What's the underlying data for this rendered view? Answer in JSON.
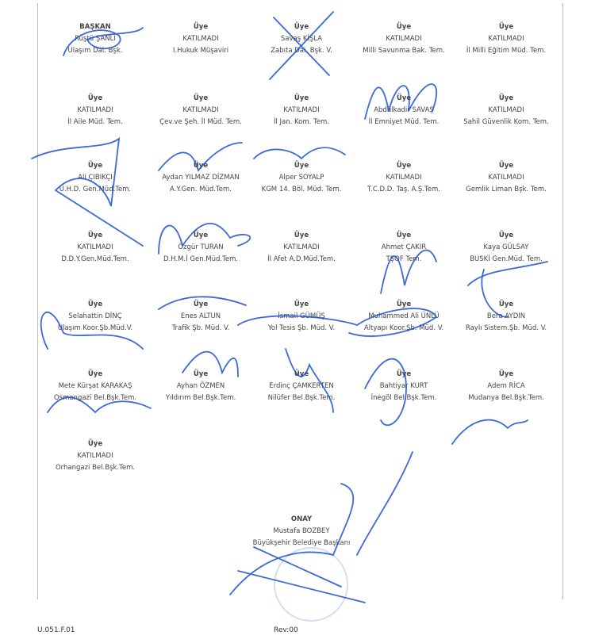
{
  "members": [
    {
      "role": "BAŞKAN",
      "name": "Rüştü ŞANLI",
      "title": "Ulaşım Dai. Bşk."
    },
    {
      "role": "Üye",
      "name": "KATILMADI",
      "title": "I.Hukuk Müşaviri"
    },
    {
      "role": "Üye",
      "name": "Savaş KİŞLA",
      "title": "Zabıta Dai. Bşk. V."
    },
    {
      "role": "Üye",
      "name": "KATILMADI",
      "title": "Milli Savunma Bak. Tem."
    },
    {
      "role": "Üye",
      "name": "KATILMADI",
      "title": "İl Milli Eğitim Müd. Tem."
    },
    {
      "role": "Üye",
      "name": "KATILMADI",
      "title": "İl Aile  Müd. Tem."
    },
    {
      "role": "Üye",
      "name": "KATILMADI",
      "title": "Çev.ve Şeh. İl Müd. Tem."
    },
    {
      "role": "Üye",
      "name": "KATILMADI",
      "title": "İl Jan. Kom. Tem."
    },
    {
      "role": "Üye",
      "name": "Abdülkadir SAVAŞ",
      "title": "İl Emniyet Müd. Tem."
    },
    {
      "role": "Üye",
      "name": "KATILMADI",
      "title": "Sahil Güvenlik Kom. Tem."
    },
    {
      "role": "Üye",
      "name": "Ali ÇIBIKÇI",
      "title": "U.H.D. Gen.Müd.Tem."
    },
    {
      "role": "Üye",
      "name": "Aydan YILMAZ DİZMAN",
      "title": "A.Y.Gen. Müd.Tem."
    },
    {
      "role": "Üye",
      "name": "Alper SOYALP",
      "title": "KGM 14. Böl. Müd. Tem."
    },
    {
      "role": "Üye",
      "name": "KATILMADI",
      "title": "T.C.D.D. Taş. A.Ş.Tem."
    },
    {
      "role": "Üye",
      "name": "KATILMADI",
      "title": "Gemlik Liman Bşk. Tem."
    },
    {
      "role": "Üye",
      "name": "KATILMADI",
      "title": "D.D.Y.Gen.Müd.Tem."
    },
    {
      "role": "Üye",
      "name": "Özgür TURAN",
      "title": "D.H.M.İ Gen.Müd.Tem."
    },
    {
      "role": "Üye",
      "name": "KATILMADI",
      "title": "İl Afet A.D.Müd.Tem."
    },
    {
      "role": "Üye",
      "name": "Ahmet ÇAKIR",
      "title": "TŞOF Tem."
    },
    {
      "role": "Üye",
      "name": "Kaya GÜLSAY",
      "title": "BUSKİ Gen.Müd. Tem."
    },
    {
      "role": "Üye",
      "name": "Selahattin DİNÇ",
      "title": "Ulaşım Koor.Şb.Müd.V."
    },
    {
      "role": "Üye",
      "name": "Enes ALTUN",
      "title": "Trafik Şb. Müd. V."
    },
    {
      "role": "Üye",
      "name": "İsmail GÜMÜŞ",
      "title": "Yol Tesis Şb. Müd. V."
    },
    {
      "role": "Üye",
      "name": "Muhammed Ali ÜNLÜ",
      "title": "Altyapı Koor.Şb. Müd. V."
    },
    {
      "role": "Üye",
      "name": "Bera AYDIN",
      "title": "Raylı Sistem.Şb. Müd. V."
    },
    {
      "role": "Üye",
      "name": "Mete Kürşat KARAKAŞ",
      "title": "Osmangazi Bel.Bşk.Tem."
    },
    {
      "role": "Üye",
      "name": "Ayhan ÖZMEN",
      "title": "Yıldırım Bel.Bşk.Tem."
    },
    {
      "role": "Üye",
      "name": "Erdinç ÇAMKERTEN",
      "title": "Nilüfer Bel.Bşk.Tem."
    },
    {
      "role": "Üye",
      "name": "Bahtiyar KURT",
      "title": "İnegöl Bel.Bşk.Tem."
    },
    {
      "role": "Üye",
      "name": "Adem RİCA",
      "title": "Mudanya Bel.Bşk.Tem."
    },
    {
      "role": "Üye",
      "name": "KATILMADI",
      "title": "Orhangazi Bel.Bşk.Tem."
    }
  ],
  "approval": {
    "role": "ONAY",
    "name": "Mustafa BOZBEY",
    "title": "Büyükşehir Belediye Başkanı"
  },
  "footer": {
    "form_code": "U.051.F.01",
    "revision": "Rev:00"
  },
  "colors": {
    "ink": "#1a4fd0",
    "text": "#444444"
  }
}
